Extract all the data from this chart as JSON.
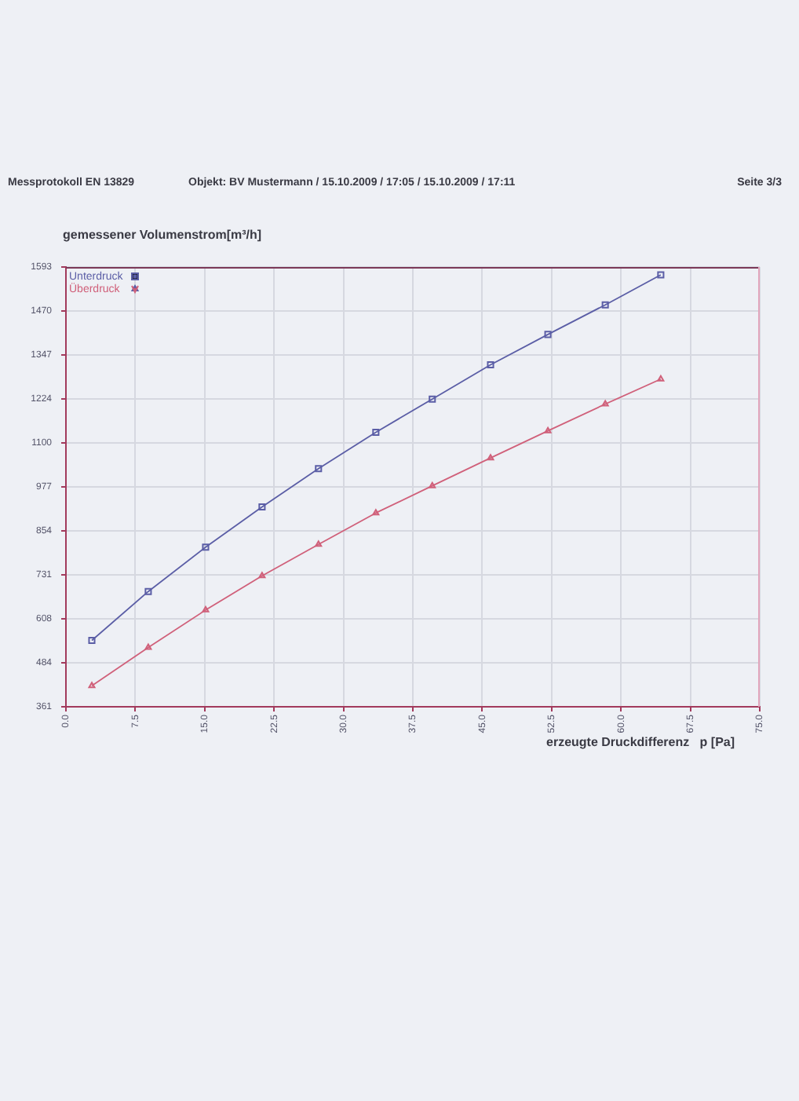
{
  "chart_data": {
    "type": "line",
    "title": "Messprotokoll EN 13829",
    "subtitle": "Objekt: BV Mustermann / 15.10.2009 / 17:05 / 15.10.2009 / 17:11",
    "annotations": [
      "Seite 3/3"
    ],
    "xlabel": "erzeugte Druckdifferenz   p [Pa]",
    "ylabel": "gemessener Volumenstrom[m³/h]",
    "x": [
      2.8,
      8.9,
      15.1,
      21.2,
      27.3,
      33.5,
      39.6,
      45.9,
      52.1,
      58.3,
      64.3
    ],
    "series": [
      {
        "name": "Unterdruck",
        "color": "#5b5ea6",
        "marker": "square",
        "values": [
          547,
          684,
          808,
          921,
          1028,
          1130,
          1223,
          1319,
          1404,
          1487,
          1571
        ]
      },
      {
        "name": "Überdruck",
        "color": "#d0607a",
        "marker": "triangle",
        "values": [
          420,
          527,
          632,
          728,
          816,
          904,
          980,
          1058,
          1134,
          1209,
          1279
        ]
      }
    ],
    "xlim": [
      0,
      75
    ],
    "xticks": [
      {
        "value": 0,
        "label": "0.0"
      },
      {
        "value": 7.5,
        "label": "7.5"
      },
      {
        "value": 15,
        "label": "15.0"
      },
      {
        "value": 22.5,
        "label": "22.5"
      },
      {
        "value": 30,
        "label": "30.0"
      },
      {
        "value": 37.5,
        "label": "37.5"
      },
      {
        "value": 45,
        "label": "45.0"
      },
      {
        "value": 52.5,
        "label": "52.5"
      },
      {
        "value": 60,
        "label": "60.0"
      },
      {
        "value": 67.5,
        "label": "67.5"
      },
      {
        "value": 75,
        "label": "75.0"
      }
    ],
    "ylim": [
      361,
      1593
    ],
    "yticks": [
      361,
      484,
      608,
      731,
      854,
      977,
      1100,
      1224,
      1347,
      1470,
      1593
    ],
    "grid": true,
    "legend": "top left",
    "line_style": "solid"
  }
}
